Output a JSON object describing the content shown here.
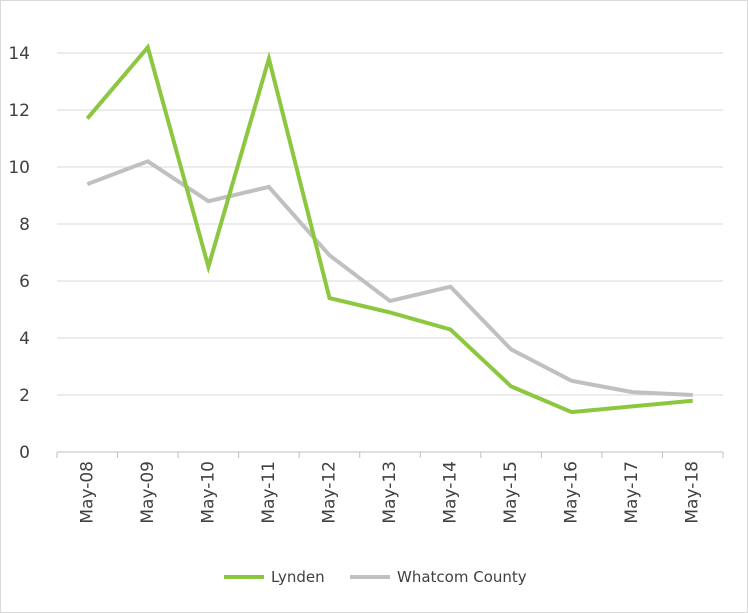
{
  "chart_data": {
    "type": "line",
    "title": "",
    "xlabel": "",
    "ylabel": "",
    "ylim": [
      0,
      14
    ],
    "yticks": [
      "0",
      "2",
      "4",
      "6",
      "8",
      "10",
      "12",
      "14"
    ],
    "categories": [
      "May-08",
      "May-09",
      "May-10",
      "May-11",
      "May-12",
      "May-13",
      "May-14",
      "May-15",
      "May-16",
      "May-17",
      "May-18"
    ],
    "series": [
      {
        "name": "Lynden",
        "color": "#8dc63f",
        "values": [
          11.7,
          14.2,
          6.5,
          13.8,
          5.4,
          4.9,
          4.3,
          2.3,
          1.4,
          1.6,
          1.8
        ]
      },
      {
        "name": "Whatcom County",
        "color": "#c0c0c0",
        "values": [
          9.4,
          10.2,
          8.8,
          9.3,
          6.9,
          5.3,
          5.8,
          3.6,
          2.5,
          2.1,
          2.0
        ]
      }
    ],
    "grid": true,
    "legend": "bottom"
  }
}
